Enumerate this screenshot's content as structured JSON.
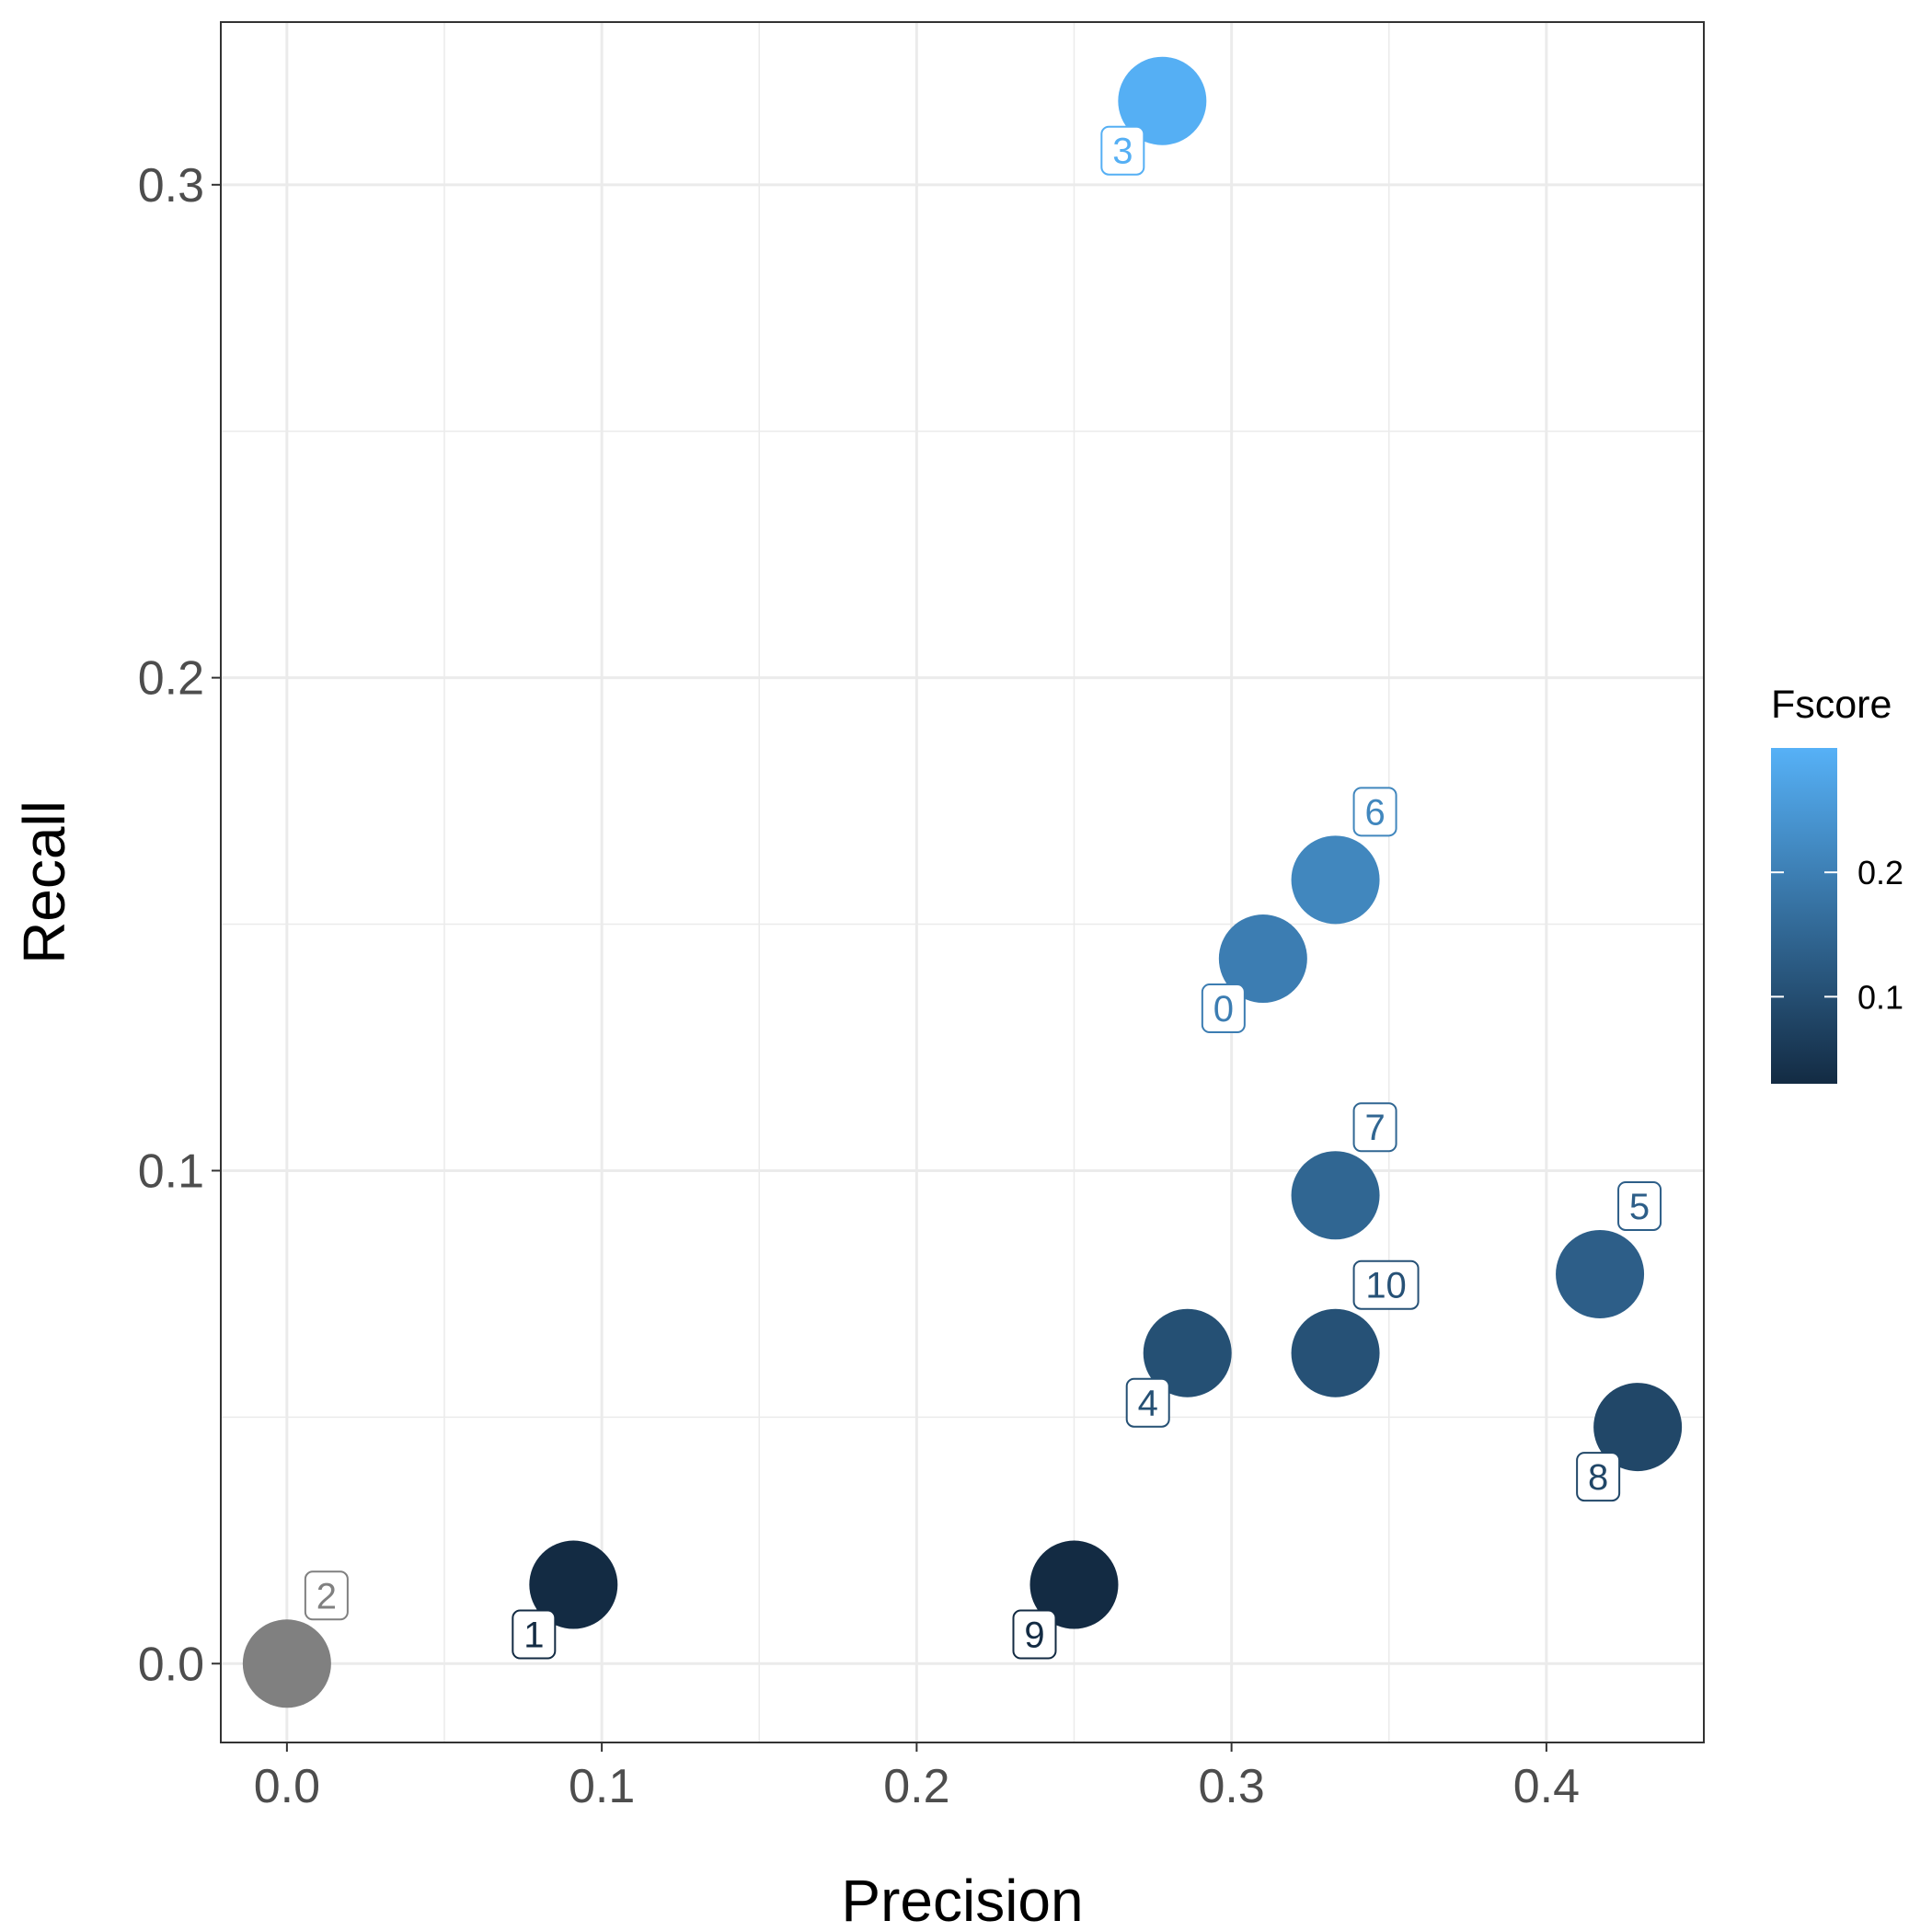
{
  "chart_data": {
    "type": "scatter",
    "xlabel": "Precision",
    "ylabel": "Recall",
    "xlim": [
      -0.021,
      0.45
    ],
    "ylim": [
      -0.016,
      0.333
    ],
    "x_ticks": [
      {
        "value": 0.0,
        "label": "0.0"
      },
      {
        "value": 0.1,
        "label": "0.1"
      },
      {
        "value": 0.2,
        "label": "0.2"
      },
      {
        "value": 0.3,
        "label": "0.3"
      },
      {
        "value": 0.4,
        "label": "0.4"
      }
    ],
    "y_ticks": [
      {
        "value": 0.0,
        "label": "0.0"
      },
      {
        "value": 0.1,
        "label": "0.1"
      },
      {
        "value": 0.2,
        "label": "0.2"
      },
      {
        "value": 0.3,
        "label": "0.3"
      }
    ],
    "grid": true,
    "legend": {
      "title": "Fscore",
      "placement": "right",
      "range": [
        0.03,
        0.3
      ],
      "ticks": [
        {
          "value": 0.1,
          "label": "0.1"
        },
        {
          "value": 0.2,
          "label": "0.2"
        }
      ],
      "low_color": "#132b43",
      "high_color": "#56b1f7",
      "na_color": "#808080"
    },
    "points": [
      {
        "label": "0",
        "precision": 0.31,
        "recall": 0.143,
        "fscore": 0.196,
        "label_pos": "below-left"
      },
      {
        "label": "1",
        "precision": 0.091,
        "recall": 0.016,
        "fscore": 0.027,
        "label_pos": "below-left"
      },
      {
        "label": "2",
        "precision": 0.0,
        "recall": 0.0,
        "fscore": null,
        "label_pos": "above-right"
      },
      {
        "label": "3",
        "precision": 0.278,
        "recall": 0.317,
        "fscore": 0.296,
        "label_pos": "below-left"
      },
      {
        "label": "4",
        "precision": 0.286,
        "recall": 0.063,
        "fscore": 0.104,
        "label_pos": "below-left"
      },
      {
        "label": "5",
        "precision": 0.417,
        "recall": 0.079,
        "fscore": 0.133,
        "label_pos": "above-right"
      },
      {
        "label": "6",
        "precision": 0.333,
        "recall": 0.159,
        "fscore": 0.215,
        "label_pos": "above-right"
      },
      {
        "label": "7",
        "precision": 0.333,
        "recall": 0.095,
        "fscore": 0.148,
        "label_pos": "above-right"
      },
      {
        "label": "8",
        "precision": 0.429,
        "recall": 0.048,
        "fscore": 0.086,
        "label_pos": "below-left"
      },
      {
        "label": "9",
        "precision": 0.25,
        "recall": 0.016,
        "fscore": 0.03,
        "label_pos": "below-left"
      },
      {
        "label": "10",
        "precision": 0.333,
        "recall": 0.063,
        "fscore": 0.107,
        "label_pos": "above-right"
      }
    ]
  }
}
